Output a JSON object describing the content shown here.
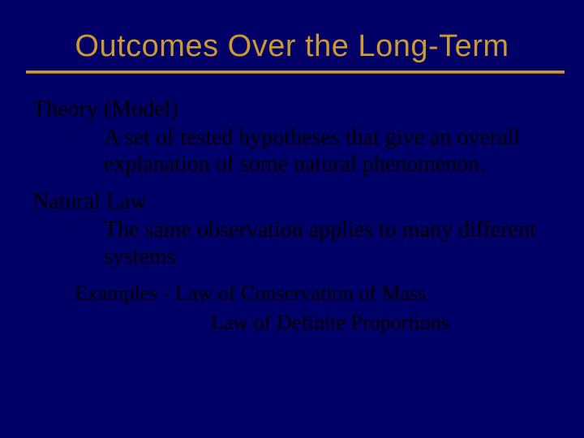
{
  "colors": {
    "background": "#000066",
    "title_color": "#cc9933",
    "text_color": "#000000",
    "rule_color": "#cc9933"
  },
  "typography": {
    "title_font": "Arial",
    "body_font": "Georgia",
    "title_fontsize": 38,
    "heading_fontsize": 28,
    "body_fontsize": 28,
    "example_fontsize": 26
  },
  "title": "Outcomes Over the Long-Term",
  "sections": [
    {
      "heading": "Theory (Model)",
      "dash": "-",
      "definition": "A set of tested hypotheses that give an overall explanation of some natural phenomenon."
    },
    {
      "heading": "Natural Law",
      "dash": "-",
      "definition": "The same observation applies to many different systems"
    }
  ],
  "examples": {
    "label": "Examples - Law of Conservation of Mass",
    "second": "Law of Definite Proportions"
  }
}
